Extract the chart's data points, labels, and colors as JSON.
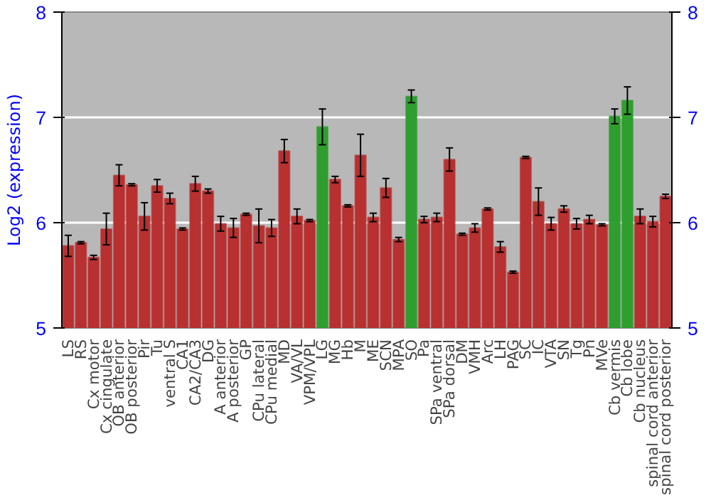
{
  "chart_data": {
    "type": "bar",
    "ylabel": "Log2 (expression)",
    "categories": [
      "LS",
      "RS",
      "Cx motor",
      "Cx cingulate",
      "OB anterior",
      "OB posterior",
      "Pir",
      "Tu",
      "ventral S",
      "CA1",
      "CA2/CA3",
      "DG",
      "A anterior",
      "A posterior",
      "GP",
      "CPu lateral",
      "CPu medial",
      "MD",
      "VA/VL",
      "VPM/VPL",
      "LG",
      "MG",
      "Hb",
      "M",
      "ME",
      "SCN",
      "MPA",
      "SO",
      "Pa",
      "SPa ventral",
      "SPa dorsal",
      "DM",
      "VMH",
      "Arc",
      "LH",
      "PAG",
      "SC",
      "IC",
      "VTA",
      "SN",
      "Tg",
      "Pn",
      "MVe",
      "Cb vermis",
      "Cb lobe",
      "Cb nucleus",
      "spinal cord anterior",
      "spinal cord posterior"
    ],
    "values": [
      5.78,
      5.81,
      5.67,
      5.94,
      6.45,
      6.36,
      6.06,
      6.35,
      6.23,
      5.94,
      6.37,
      6.3,
      5.99,
      5.95,
      6.08,
      5.97,
      5.95,
      6.68,
      6.06,
      6.02,
      6.91,
      6.41,
      6.16,
      6.64,
      6.05,
      6.33,
      5.84,
      7.2,
      6.03,
      6.05,
      6.6,
      5.89,
      5.95,
      6.13,
      5.77,
      5.53,
      6.62,
      6.2,
      5.99,
      6.13,
      5.99,
      6.03,
      5.98,
      7.01,
      7.16,
      6.06,
      6.01,
      6.25
    ],
    "errors": [
      0.1,
      0.01,
      0.02,
      0.15,
      0.1,
      0.01,
      0.13,
      0.06,
      0.05,
      0.01,
      0.07,
      0.02,
      0.07,
      0.09,
      0.01,
      0.16,
      0.08,
      0.11,
      0.07,
      0.01,
      0.17,
      0.03,
      0.01,
      0.2,
      0.04,
      0.09,
      0.02,
      0.06,
      0.03,
      0.04,
      0.11,
      0.01,
      0.04,
      0.01,
      0.05,
      0.01,
      0.01,
      0.13,
      0.06,
      0.03,
      0.05,
      0.04,
      0.01,
      0.07,
      0.13,
      0.07,
      0.05,
      0.02
    ],
    "colors": [
      "#b83030",
      "#b83030",
      "#b83030",
      "#b83030",
      "#b83030",
      "#b83030",
      "#b83030",
      "#b83030",
      "#b83030",
      "#b83030",
      "#b83030",
      "#b83030",
      "#b83030",
      "#b83030",
      "#b83030",
      "#b83030",
      "#b83030",
      "#b83030",
      "#b83030",
      "#b83030",
      "#2e9e2e",
      "#b83030",
      "#b83030",
      "#b83030",
      "#b83030",
      "#b83030",
      "#b83030",
      "#2e9e2e",
      "#b83030",
      "#b83030",
      "#b83030",
      "#b83030",
      "#b83030",
      "#b83030",
      "#b83030",
      "#b83030",
      "#b83030",
      "#b83030",
      "#b83030",
      "#b83030",
      "#b83030",
      "#b83030",
      "#b83030",
      "#2e9e2e",
      "#2e9e2e",
      "#b83030",
      "#b83030",
      "#b83030"
    ],
    "ylim": [
      5,
      8
    ],
    "yticks": [
      5,
      6,
      7,
      8
    ],
    "y2lim": [
      5,
      8
    ],
    "y2ticks": [
      5,
      6,
      7,
      8
    ],
    "grid": "y"
  }
}
